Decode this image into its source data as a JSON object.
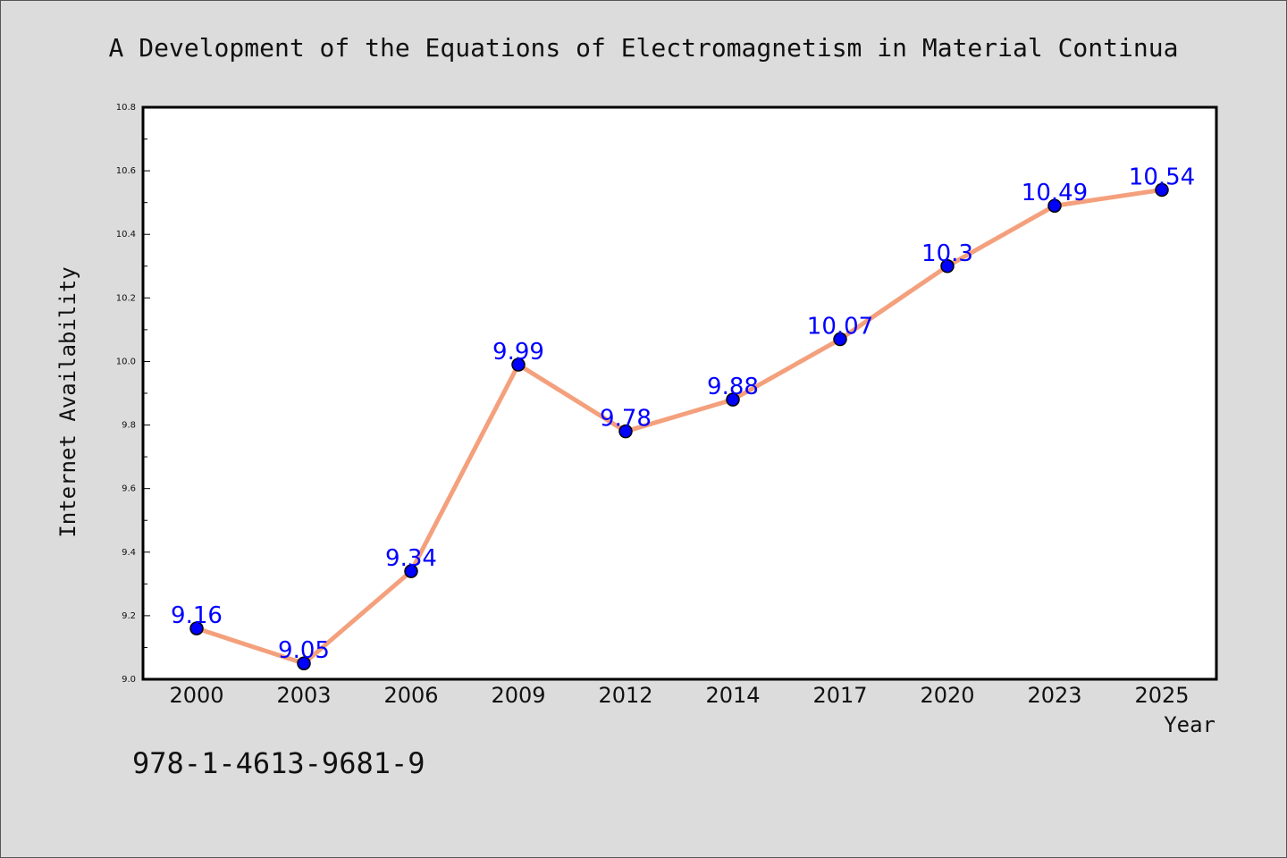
{
  "chart_data": {
    "type": "line",
    "title": "A Development of the Equations of Electromagnetism in Material Continua",
    "xlabel": "Year",
    "ylabel": "Internet Availability",
    "categories": [
      "2000",
      "2003",
      "2006",
      "2009",
      "2012",
      "2014",
      "2017",
      "2020",
      "2023",
      "2025"
    ],
    "series": [
      {
        "values": [
          9.16,
          9.05,
          9.34,
          9.99,
          9.78,
          9.88,
          10.07,
          10.3,
          10.49,
          10.54
        ]
      }
    ],
    "data_labels": [
      "9.16",
      "9.05",
      "9.34",
      "9.99",
      "9.78",
      "9.88",
      "10.07",
      "10.3",
      "10.49",
      "10.54"
    ],
    "ylim": [
      9.0,
      10.8
    ],
    "yticks": [
      "9.0",
      "9.2",
      "9.4",
      "9.6",
      "9.8",
      "10.0",
      "10.2",
      "10.4",
      "10.6",
      "10.8"
    ],
    "grid": false,
    "colors": {
      "line": "#f4a07c",
      "marker_fill": "#0000ff",
      "marker_edge": "#000000",
      "data_label": "#0000ff",
      "plot_background": "#ffffff",
      "page_background": "#dcdcdc"
    }
  },
  "footer": {
    "isbn": "978-1-4613-9681-9"
  }
}
